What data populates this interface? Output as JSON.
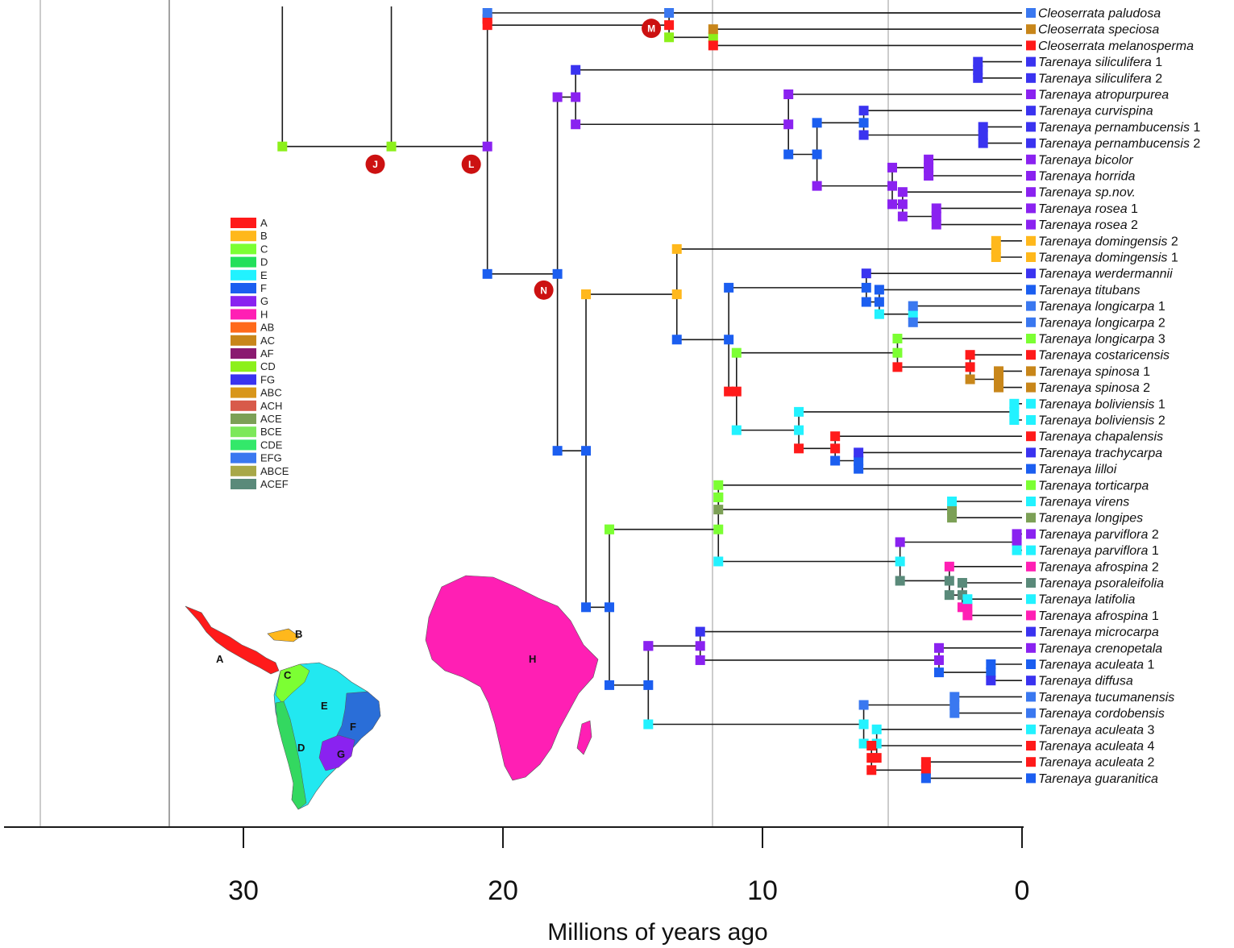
{
  "axis": {
    "title": "Millions of years ago",
    "ticks": [
      30,
      20,
      10,
      0
    ],
    "range": [
      38,
      0
    ]
  },
  "colors": {
    "A": "#ff1a1a",
    "B": "#ffb81c",
    "C": "#7cff33",
    "D": "#22e05a",
    "E": "#22f2ff",
    "F": "#1b5ef0",
    "G": "#8a22f0",
    "H": "#ff1fb4",
    "AB": "#ff6a1a",
    "AC": "#c8861a",
    "AF": "#8a1a70",
    "CD": "#8cf01a",
    "FG": "#3a33f0",
    "ABC": "#d8961a",
    "ACH": "#d85a4a",
    "ACE": "#7ca056",
    "BCE": "#7ce85a",
    "CDE": "#33e86a",
    "EFG": "#3a78f0",
    "ABCE": "#a8a848",
    "ACEF": "#5a8a7a",
    "GRAY": "#777777"
  },
  "legend": {
    "items": [
      {
        "code": "A",
        "label": "A"
      },
      {
        "code": "B",
        "label": "B"
      },
      {
        "code": "C",
        "label": "C"
      },
      {
        "code": "D",
        "label": "D"
      },
      {
        "code": "E",
        "label": "E"
      },
      {
        "code": "F",
        "label": "F"
      },
      {
        "code": "G",
        "label": "G"
      },
      {
        "code": "H",
        "label": "H"
      },
      {
        "code": "AB",
        "label": "AB"
      },
      {
        "code": "AC",
        "label": "AC"
      },
      {
        "code": "AF",
        "label": "AF"
      },
      {
        "code": "CD",
        "label": "CD"
      },
      {
        "code": "FG",
        "label": "FG"
      },
      {
        "code": "ABC",
        "label": "ABC"
      },
      {
        "code": "ACH",
        "label": "ACH"
      },
      {
        "code": "ACE",
        "label": "ACE"
      },
      {
        "code": "BCE",
        "label": "BCE"
      },
      {
        "code": "CDE",
        "label": "CDE"
      },
      {
        "code": "EFG",
        "label": "EFG"
      },
      {
        "code": "ABCE",
        "label": "ABCE"
      },
      {
        "code": "ACEF",
        "label": "ACEF"
      }
    ]
  },
  "node_labels": [
    "J",
    "L",
    "M",
    "N"
  ],
  "map_regions": [
    "A",
    "B",
    "C",
    "D",
    "E",
    "F",
    "G",
    "H"
  ],
  "taxa": [
    {
      "genus": "Cleoserrata",
      "epithet": "paludosa",
      "number": "",
      "area": "EFG"
    },
    {
      "genus": "Cleoserrata",
      "epithet": "speciosa",
      "number": "",
      "area": "AC"
    },
    {
      "genus": "Cleoserrata",
      "epithet": "melanosperma",
      "number": "",
      "area": "A"
    },
    {
      "genus": "Tarenaya",
      "epithet": "siliculifera",
      "number": "1",
      "area": "FG"
    },
    {
      "genus": "Tarenaya",
      "epithet": "siliculifera",
      "number": "2",
      "area": "FG"
    },
    {
      "genus": "Tarenaya",
      "epithet": "atropurpurea",
      "number": "",
      "area": "G"
    },
    {
      "genus": "Tarenaya",
      "epithet": "curvispina",
      "number": "",
      "area": "FG"
    },
    {
      "genus": "Tarenaya",
      "epithet": "pernambucensis",
      "number": "1",
      "area": "FG"
    },
    {
      "genus": "Tarenaya",
      "epithet": "pernambucensis",
      "number": "2",
      "area": "FG"
    },
    {
      "genus": "Tarenaya",
      "epithet": "bicolor",
      "number": "",
      "area": "G"
    },
    {
      "genus": "Tarenaya",
      "epithet": "horrida",
      "number": "",
      "area": "G"
    },
    {
      "genus": "Tarenaya",
      "epithet": "sp.nov.",
      "number": "",
      "area": "G"
    },
    {
      "genus": "Tarenaya",
      "epithet": "rosea",
      "number": "1",
      "area": "G"
    },
    {
      "genus": "Tarenaya",
      "epithet": "rosea",
      "number": "2",
      "area": "G"
    },
    {
      "genus": "Tarenaya",
      "epithet": "domingensis",
      "number": "2",
      "area": "B"
    },
    {
      "genus": "Tarenaya",
      "epithet": "domingensis",
      "number": "1",
      "area": "B"
    },
    {
      "genus": "Tarenaya",
      "epithet": "werdermannii",
      "number": "",
      "area": "FG"
    },
    {
      "genus": "Tarenaya",
      "epithet": "titubans",
      "number": "",
      "area": "F"
    },
    {
      "genus": "Tarenaya",
      "epithet": "longicarpa",
      "number": "1",
      "area": "EFG"
    },
    {
      "genus": "Tarenaya",
      "epithet": "longicarpa",
      "number": "2",
      "area": "EFG"
    },
    {
      "genus": "Tarenaya",
      "epithet": "longicarpa",
      "number": "3",
      "area": "C"
    },
    {
      "genus": "Tarenaya",
      "epithet": "costaricensis",
      "number": "",
      "area": "A"
    },
    {
      "genus": "Tarenaya",
      "epithet": "spinosa",
      "number": "1",
      "area": "AC"
    },
    {
      "genus": "Tarenaya",
      "epithet": "spinosa",
      "number": "2",
      "area": "AC"
    },
    {
      "genus": "Tarenaya",
      "epithet": "boliviensis",
      "number": "1",
      "area": "E"
    },
    {
      "genus": "Tarenaya",
      "epithet": "boliviensis",
      "number": "2",
      "area": "E"
    },
    {
      "genus": "Tarenaya",
      "epithet": "chapalensis",
      "number": "",
      "area": "A"
    },
    {
      "genus": "Tarenaya",
      "epithet": "trachycarpa",
      "number": "",
      "area": "FG"
    },
    {
      "genus": "Tarenaya",
      "epithet": "lilloi",
      "number": "",
      "area": "F"
    },
    {
      "genus": "Tarenaya",
      "epithet": "torticarpa",
      "number": "",
      "area": "C"
    },
    {
      "genus": "Tarenaya",
      "epithet": "virens",
      "number": "",
      "area": "E"
    },
    {
      "genus": "Tarenaya",
      "epithet": "longipes",
      "number": "",
      "area": "ACE"
    },
    {
      "genus": "Tarenaya",
      "epithet": "parviflora",
      "number": "2",
      "area": "G"
    },
    {
      "genus": "Tarenaya",
      "epithet": "parviflora",
      "number": "1",
      "area": "E"
    },
    {
      "genus": "Tarenaya",
      "epithet": "afrospina",
      "number": "2",
      "area": "H"
    },
    {
      "genus": "Tarenaya",
      "epithet": "psoraleifolia",
      "number": "",
      "area": "ACEF"
    },
    {
      "genus": "Tarenaya",
      "epithet": "latifolia",
      "number": "",
      "area": "E"
    },
    {
      "genus": "Tarenaya",
      "epithet": "afrospina",
      "number": "1",
      "area": "H"
    },
    {
      "genus": "Tarenaya",
      "epithet": "microcarpa",
      "number": "",
      "area": "FG"
    },
    {
      "genus": "Tarenaya",
      "epithet": "crenopetala",
      "number": "",
      "area": "G"
    },
    {
      "genus": "Tarenaya",
      "epithet": "aculeata",
      "number": "1",
      "area": "F"
    },
    {
      "genus": "Tarenaya",
      "epithet": "diffusa",
      "number": "",
      "area": "FG"
    },
    {
      "genus": "Tarenaya",
      "epithet": "tucumanensis",
      "number": "",
      "area": "EFG"
    },
    {
      "genus": "Tarenaya",
      "epithet": "cordobensis",
      "number": "",
      "area": "EFG"
    },
    {
      "genus": "Tarenaya",
      "epithet": "aculeata",
      "number": "3",
      "area": "E"
    },
    {
      "genus": "Tarenaya",
      "epithet": "aculeata",
      "number": "4",
      "area": "A"
    },
    {
      "genus": "Tarenaya",
      "epithet": "aculeata",
      "number": "2",
      "area": "A"
    },
    {
      "genus": "Tarenaya",
      "epithet": "guaranitica",
      "number": "",
      "area": "F"
    }
  ],
  "nodes": [
    {
      "id": "root",
      "age": 28.5,
      "tip": -1,
      "area": "CD",
      "label": ""
    },
    {
      "id": "J",
      "age": 24.3,
      "tip": -1,
      "area": "CD",
      "label": "J"
    },
    {
      "id": "L",
      "age": 20.6,
      "tip": -1,
      "area": "G",
      "label": "L"
    },
    {
      "id": "cleo",
      "age": 20.6,
      "tip": -1,
      "area": "A",
      "label": ""
    },
    {
      "id": "M",
      "age": 13.6,
      "tip": -1,
      "area": "A",
      "label": "M"
    },
    {
      "id": "cleo_sm",
      "age": 11.9,
      "tip": -1,
      "area": "CD",
      "label": ""
    },
    {
      "id": "N",
      "age": 17.9,
      "tip": -1,
      "area": "F",
      "label": "N"
    },
    {
      "id": "nG",
      "age": 17.2,
      "tip": -1,
      "area": "G",
      "label": ""
    },
    {
      "id": "nSil",
      "age": 1.7,
      "tip": -1,
      "area": "FG",
      "label": ""
    },
    {
      "id": "nAtro",
      "age": 9.0,
      "tip": -1,
      "area": "G",
      "label": ""
    },
    {
      "id": "nCP",
      "age": 7.9,
      "tip": -1,
      "area": "F",
      "label": ""
    },
    {
      "id": "nCurv",
      "age": 6.1,
      "tip": -1,
      "area": "F",
      "label": ""
    },
    {
      "id": "nPer",
      "age": 1.5,
      "tip": -1,
      "area": "FG",
      "label": ""
    },
    {
      "id": "nBR",
      "age": 5.0,
      "tip": -1,
      "area": "G",
      "label": ""
    },
    {
      "id": "nBH",
      "age": 3.6,
      "tip": -1,
      "area": "G",
      "label": ""
    },
    {
      "id": "nSR",
      "age": 4.6,
      "tip": -1,
      "area": "G",
      "label": ""
    },
    {
      "id": "nRos",
      "age": 3.3,
      "tip": -1,
      "area": "G",
      "label": ""
    },
    {
      "id": "nO",
      "age": 16.8,
      "tip": -1,
      "area": "F",
      "label": ""
    },
    {
      "id": "nP",
      "age": 16.8,
      "tip": -1,
      "area": "B",
      "label": ""
    },
    {
      "id": "nQ",
      "age": 13.3,
      "tip": -1,
      "area": "B",
      "label": ""
    },
    {
      "id": "nDom",
      "age": 1.0,
      "tip": -1,
      "area": "B",
      "label": ""
    },
    {
      "id": "nR",
      "age": 11.3,
      "tip": -1,
      "area": "F",
      "label": ""
    },
    {
      "id": "nS",
      "age": 6.0,
      "tip": -1,
      "area": "F",
      "label": ""
    },
    {
      "id": "nT",
      "age": 5.5,
      "tip": -1,
      "area": "F",
      "label": ""
    },
    {
      "id": "nLong",
      "age": 4.2,
      "tip": -1,
      "area": "E",
      "label": ""
    },
    {
      "id": "nU",
      "age": 11.0,
      "tip": -1,
      "area": "A",
      "label": ""
    },
    {
      "id": "nV",
      "age": 4.8,
      "tip": -1,
      "area": "C",
      "label": ""
    },
    {
      "id": "nW",
      "age": 2.0,
      "tip": -1,
      "area": "A",
      "label": ""
    },
    {
      "id": "nSpin",
      "age": 0.9,
      "tip": -1,
      "area": "AC",
      "label": ""
    },
    {
      "id": "nX",
      "age": 8.6,
      "tip": -1,
      "area": "E",
      "label": ""
    },
    {
      "id": "nBol",
      "age": 0.3,
      "tip": -1,
      "area": "E",
      "label": ""
    },
    {
      "id": "nY",
      "age": 7.2,
      "tip": -1,
      "area": "A",
      "label": ""
    },
    {
      "id": "nZ",
      "age": 6.3,
      "tip": -1,
      "area": "F",
      "label": ""
    },
    {
      "id": "nAA",
      "age": 15.9,
      "tip": -1,
      "area": "F",
      "label": ""
    },
    {
      "id": "nAB",
      "age": 15.9,
      "tip": -1,
      "area": "C",
      "label": ""
    },
    {
      "id": "nAC",
      "age": 11.7,
      "tip": -1,
      "area": "C",
      "label": ""
    },
    {
      "id": "nAD",
      "age": 11.7,
      "tip": -1,
      "area": "C",
      "label": ""
    },
    {
      "id": "nVir",
      "age": 2.7,
      "tip": -1,
      "area": "ACE",
      "label": ""
    },
    {
      "id": "nAE",
      "age": 4.7,
      "tip": -1,
      "area": "E",
      "label": ""
    },
    {
      "id": "nPar",
      "age": 0.2,
      "tip": -1,
      "area": "G",
      "label": ""
    },
    {
      "id": "nAF",
      "age": 2.8,
      "tip": -1,
      "area": "ACEF",
      "label": ""
    },
    {
      "id": "nAG",
      "age": 2.3,
      "tip": -1,
      "area": "ACEF",
      "label": ""
    },
    {
      "id": "nAH",
      "age": 2.1,
      "tip": -1,
      "area": "H",
      "label": ""
    },
    {
      "id": "nAI",
      "age": 14.4,
      "tip": -1,
      "area": "F",
      "label": ""
    },
    {
      "id": "nAJ",
      "age": 14.4,
      "tip": -1,
      "area": "G",
      "label": ""
    },
    {
      "id": "nAK",
      "age": 12.4,
      "tip": -1,
      "area": "G",
      "label": ""
    },
    {
      "id": "nAL",
      "age": 3.2,
      "tip": -1,
      "area": "G",
      "label": ""
    },
    {
      "id": "nAM",
      "age": 1.2,
      "tip": -1,
      "area": "F",
      "label": ""
    },
    {
      "id": "nAN",
      "age": 6.1,
      "tip": -1,
      "area": "E",
      "label": ""
    },
    {
      "id": "nTuc",
      "age": 2.6,
      "tip": -1,
      "area": "EFG",
      "label": ""
    },
    {
      "id": "nAO",
      "age": 5.6,
      "tip": -1,
      "area": "E",
      "label": ""
    },
    {
      "id": "nAP",
      "age": 5.8,
      "tip": -1,
      "area": "A",
      "label": ""
    },
    {
      "id": "nAQ",
      "age": 3.7,
      "tip": -1,
      "area": "A",
      "label": ""
    }
  ],
  "edges": [
    [
      "root",
      "J"
    ],
    [
      "J",
      "L"
    ],
    [
      "L",
      "cleo"
    ],
    [
      "L",
      "N"
    ],
    [
      "cleo",
      "T0"
    ],
    [
      "cleo",
      "M"
    ],
    [
      "M",
      "T0"
    ],
    [
      "M",
      "cleo_sm"
    ],
    [
      "cleo_sm",
      "T1"
    ],
    [
      "cleo_sm",
      "T2"
    ],
    [
      "N",
      "nG"
    ],
    [
      "N",
      "nO"
    ],
    [
      "nG",
      "nSil"
    ],
    [
      "nSil",
      "T3"
    ],
    [
      "nSil",
      "T4"
    ],
    [
      "nG",
      "nAtro"
    ],
    [
      "nAtro",
      "T5"
    ],
    [
      "nAtro",
      "nCP"
    ],
    [
      "nCP",
      "nCurv"
    ],
    [
      "nCurv",
      "T6"
    ],
    [
      "nCurv",
      "nPer"
    ],
    [
      "nPer",
      "T7"
    ],
    [
      "nPer",
      "T8"
    ],
    [
      "nCP",
      "nBR"
    ],
    [
      "nBR",
      "nBH"
    ],
    [
      "nBH",
      "T9"
    ],
    [
      "nBH",
      "T10"
    ],
    [
      "nBR",
      "nSR"
    ],
    [
      "nSR",
      "T11"
    ],
    [
      "nSR",
      "nRos"
    ],
    [
      "nRos",
      "T12"
    ],
    [
      "nRos",
      "T13"
    ],
    [
      "nO",
      "nP"
    ],
    [
      "nP",
      "nQ"
    ],
    [
      "nQ",
      "nDom"
    ],
    [
      "nDom",
      "T14"
    ],
    [
      "nDom",
      "T15"
    ],
    [
      "nQ",
      "nR"
    ],
    [
      "nR",
      "nS"
    ],
    [
      "nS",
      "T16"
    ],
    [
      "nS",
      "nT"
    ],
    [
      "nT",
      "T17"
    ],
    [
      "nT",
      "nLong"
    ],
    [
      "nLong",
      "T18"
    ],
    [
      "nLong",
      "T19"
    ],
    [
      "nR",
      "nU"
    ],
    [
      "nU",
      "nV"
    ],
    [
      "nV",
      "T20"
    ],
    [
      "nV",
      "nW"
    ],
    [
      "nW",
      "T21"
    ],
    [
      "nW",
      "nSpin"
    ],
    [
      "nSpin",
      "T22"
    ],
    [
      "nSpin",
      "T23"
    ],
    [
      "nU",
      "nX"
    ],
    [
      "nX",
      "nBol"
    ],
    [
      "nBol",
      "T24"
    ],
    [
      "nBol",
      "T25"
    ],
    [
      "nX",
      "nY"
    ],
    [
      "nY",
      "T26"
    ],
    [
      "nY",
      "nZ"
    ],
    [
      "nZ",
      "T27"
    ],
    [
      "nZ",
      "T28"
    ],
    [
      "nO",
      "nAA"
    ],
    [
      "nAA",
      "nAB"
    ],
    [
      "nAB",
      "nAC"
    ],
    [
      "nAC",
      "nAD"
    ],
    [
      "nAD",
      "T29"
    ],
    [
      "nAD",
      "nVir"
    ],
    [
      "nVir",
      "T30"
    ],
    [
      "nVir",
      "T31"
    ],
    [
      "nAC",
      "nAE"
    ],
    [
      "nAE",
      "nPar"
    ],
    [
      "nPar",
      "T32"
    ],
    [
      "nPar",
      "T33"
    ],
    [
      "nAE",
      "nAF"
    ],
    [
      "nAF",
      "T34"
    ],
    [
      "nAF",
      "nAG"
    ],
    [
      "nAG",
      "T35"
    ],
    [
      "nAG",
      "nAH"
    ],
    [
      "nAH",
      "T36"
    ],
    [
      "nAH",
      "T37"
    ],
    [
      "nAA",
      "nAI"
    ],
    [
      "nAI",
      "nAJ"
    ],
    [
      "nAJ",
      "nAK"
    ],
    [
      "nAK",
      "T38"
    ],
    [
      "nAK",
      "nAL"
    ],
    [
      "nAL",
      "T39"
    ],
    [
      "nAL",
      "nAM"
    ],
    [
      "nAM",
      "T40"
    ],
    [
      "nAM",
      "T41"
    ],
    [
      "nAI",
      "nAN"
    ],
    [
      "nAN",
      "nTuc"
    ],
    [
      "nTuc",
      "T42"
    ],
    [
      "nTuc",
      "T43"
    ],
    [
      "nAN",
      "nAO"
    ],
    [
      "nAO",
      "T44"
    ],
    [
      "nAO",
      "nAP"
    ],
    [
      "nAP",
      "T45"
    ],
    [
      "nAP",
      "nAQ"
    ],
    [
      "nAQ",
      "T46"
    ],
    [
      "nAQ",
      "T47"
    ]
  ],
  "stem": {
    "from_age": 28.5,
    "up_to_top": true
  },
  "extra_stems": [
    {
      "age": 24.3,
      "up_to_top": true
    }
  ]
}
